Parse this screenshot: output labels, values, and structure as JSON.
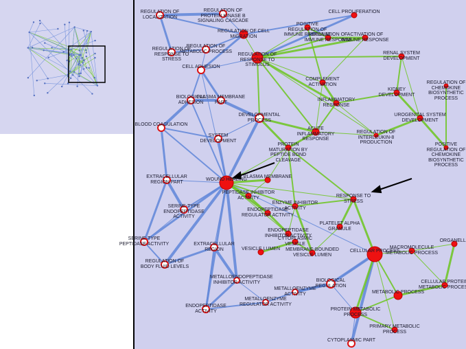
{
  "nodes": [
    {
      "label": "WOUND HEALING"
    },
    {
      "label": "CELLULAR PROCESS"
    },
    {
      "label": "REGULATION OF RESPONSE TO STIMULUS"
    },
    {
      "label": "REGULATION OF CELL MIGRATION"
    },
    {
      "label": "CELL PROLIFERATION"
    },
    {
      "label": "POSITIVE REGULATION OF IMMUNE RESPONSE"
    },
    {
      "label": "REGULATION OF IMMUNE RESPONSE"
    },
    {
      "label": "ACTIVATION OF IMMUNE RESPONSE"
    },
    {
      "label": "RENAL SYSTEM DEVELOPMENT"
    },
    {
      "label": "REGULATION OF CHEMOKINE BIOSYNTHETIC PROCESS"
    },
    {
      "label": "KIDNEY DEVELOPMENT"
    },
    {
      "label": "UROGENITAL SYSTEM DEVELOPMENT"
    },
    {
      "label": "POSITIVE REGULATION OF CHEMOKINE BIOSYNTHETIC PROCESS"
    },
    {
      "label": "REGULATION OF INTERLEUKIN-8 PRODUCTION"
    },
    {
      "label": "CELL ADHESION"
    },
    {
      "label": "BIOLOGICAL ADHESION"
    },
    {
      "label": "PLASMA MEMBRANE PART"
    },
    {
      "label": "REGULATION OF METABOLIC PROCESS"
    },
    {
      "label": "REGULATION OF RESPONSE TO STRESS"
    },
    {
      "label": "DEVELOPMENTAL PROCESS"
    },
    {
      "label": "SYSTEM DEVELOPMENT"
    },
    {
      "label": "BLOOD COAGULATION"
    },
    {
      "label": "EXTRACELLULAR REGION PART"
    },
    {
      "label": "SERINE-TYPE ENDOPEPTIDASE ACTIVITY"
    },
    {
      "label": "SERINE-TYPE PEPTIDASE ACTIVITY"
    },
    {
      "label": "REGULATION OF BODY FLUID LEVELS"
    },
    {
      "label": "EXTRACELLULAR REGION"
    },
    {
      "label": "METALLOENDOPEPTIDASE INHIBITOR ACTIVITY"
    },
    {
      "label": "METALLOENZYME REGULATOR ACTIVITY"
    },
    {
      "label": "METALLOENZYME ACTIVITY"
    },
    {
      "label": "ENDOPEPTIDASE ACTIVITY"
    },
    {
      "label": "BIOLOGICAL REGULATION"
    },
    {
      "label": "VESICLE LUMEN"
    },
    {
      "label": "MEMBRANE-BOUNDED VESICLE LUMEN"
    },
    {
      "label": "CYTOPLASMIC VESICLE"
    },
    {
      "label": "PLATELET ALPHA GRANULE"
    },
    {
      "label": "RESPONSE TO STRESS"
    },
    {
      "label": "PEPTIDASE INHIBITOR ACTIVITY"
    },
    {
      "label": "ENDOPEPTIDASE REGULATOR ACTIVITY"
    },
    {
      "label": "ENDOPEPTIDASE INHIBITOR ACTIVITY"
    },
    {
      "label": "ENZYME INHIBITOR ACTIVITY"
    },
    {
      "label": "ACUTE INFLAMMATORY RESPONSE"
    },
    {
      "label": "INFLAMMATORY RESPONSE"
    },
    {
      "label": "MACROMOLECULE METABOLIC PROCESS"
    },
    {
      "label": "CELLULAR PROTEIN METABOLIC PROCESS"
    },
    {
      "label": "METABOLIC PROCESS"
    },
    {
      "label": "PROTEIN METABOLIC PROCESS"
    },
    {
      "label": "PRIMARY METABOLIC PROCESS"
    },
    {
      "label": "CYTOPLASMIC PART"
    },
    {
      "label": "ORGANELLE"
    },
    {
      "label": "REGULATION OF PROTEIN KINASE B SIGNALING CASCADE"
    },
    {
      "label": "REGULATION OF LOCALIZATION"
    },
    {
      "label": "PLASMA MEMBRANE"
    },
    {
      "label": "PROTEIN MATURATION BY PEPTIDE BOND CLEAVAGE"
    },
    {
      "label": "COMPLEMENT ACTIVATION"
    }
  ]
}
